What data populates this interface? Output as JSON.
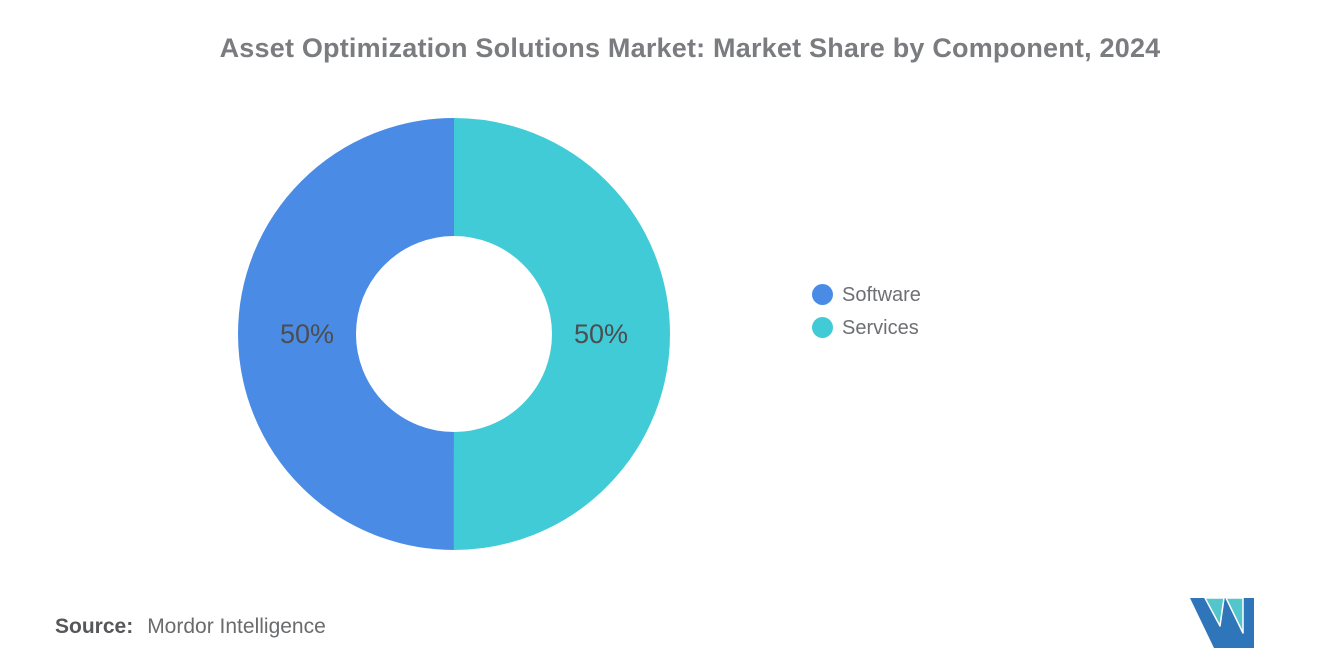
{
  "title": "Asset Optimization Solutions Market: Market Share by Component, 2024",
  "chart_data": {
    "type": "pie",
    "subtype": "donut",
    "title": "Asset Optimization Solutions Market: Market Share by Component, 2024",
    "categories": [
      "Software",
      "Services"
    ],
    "values": [
      50,
      50
    ],
    "data_labels": [
      "50%",
      "50%"
    ],
    "colors": [
      "#4a8ce5",
      "#41cbd6"
    ],
    "label_color": "#4c4d50",
    "legend_position": "right",
    "inner_radius_ratio": 0.455,
    "start_position": "bottom-clockwise"
  },
  "legend": {
    "items": [
      {
        "label": "Software",
        "color": "#4a8ce5"
      },
      {
        "label": "Services",
        "color": "#41cbd6"
      }
    ]
  },
  "source": {
    "label": "Source:",
    "value": "Mordor Intelligence"
  },
  "logo": {
    "name": "mordor-intelligence-logo",
    "teal": "#53c6cb",
    "blue": "#2e75b9"
  }
}
